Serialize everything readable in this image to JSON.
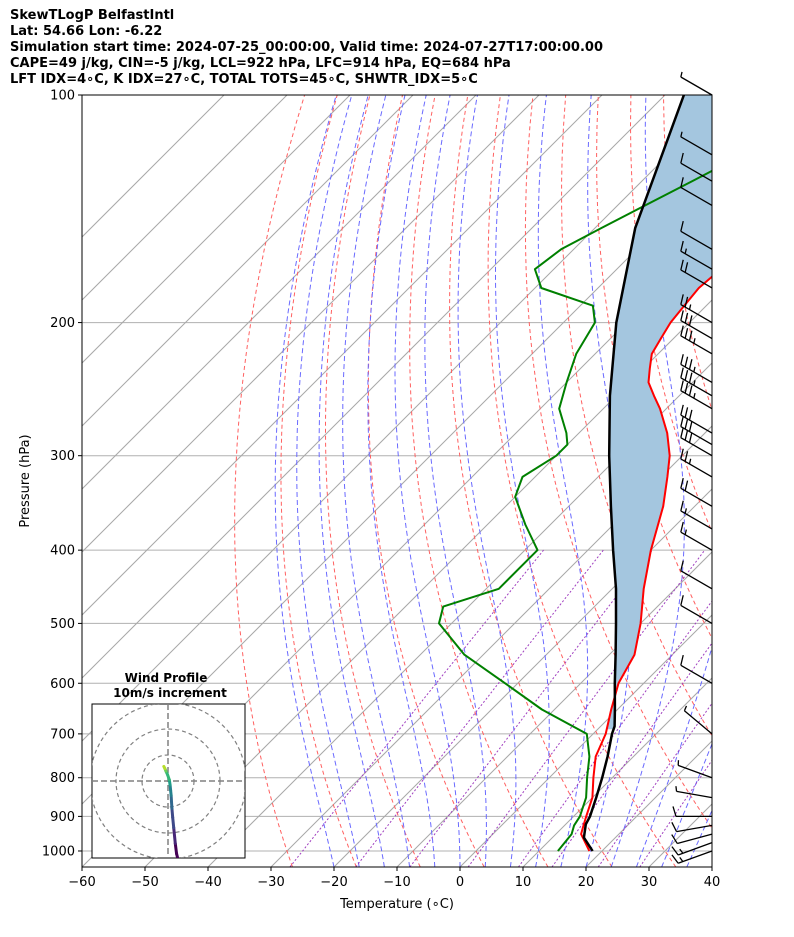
{
  "header": {
    "line1": "SkewTLogP BelfastIntl",
    "line2": "Lat: 54.66   Lon: -6.22",
    "line3": "Simulation start time: 2024-07-25_00:00:00, Valid time: 2024-07-27T17:00:00.00",
    "line4": "CAPE=49 j/kg, CIN=-5 j/kg, LCL=922 hPa, LFC=914 hPa, EQ=684 hPa",
    "line5": "LFT IDX=4∘C, K IDX=27∘C, TOTAL TOTS=45∘C, SHWTR_IDX=5∘C"
  },
  "chart_data": {
    "type": "skewt",
    "xlabel": "Temperature (∘C)",
    "ylabel": "Pressure (hPa)",
    "xlim": [
      -60,
      40
    ],
    "ylim": [
      1050,
      100
    ],
    "xticks": [
      -60,
      -50,
      -40,
      -30,
      -20,
      -10,
      0,
      10,
      20,
      30,
      40
    ],
    "xtick_labels": [
      "−60",
      "−50",
      "−40",
      "−30",
      "−20",
      "−10",
      "0",
      "10",
      "20",
      "30",
      "40"
    ],
    "yticks": [
      1000,
      900,
      800,
      700,
      600,
      500,
      400,
      300,
      200,
      100
    ],
    "ytick_labels": [
      "1000",
      "900",
      "800",
      "700",
      "600",
      "500",
      "400",
      "300",
      "200",
      "100"
    ],
    "skew": 1.0,
    "temperature": {
      "color": "#ff0000",
      "p": [
        1000,
        950,
        925,
        900,
        850,
        800,
        750,
        700,
        650,
        600,
        550,
        500,
        450,
        400,
        350,
        320,
        300,
        280,
        260,
        250,
        240,
        230,
        220,
        210,
        200,
        190,
        180,
        170,
        160,
        150,
        140,
        130,
        120,
        110,
        100
      ],
      "t": [
        18,
        14,
        13,
        12,
        10,
        7,
        4,
        2,
        -1,
        -4,
        -6,
        -10,
        -15,
        -20,
        -25,
        -29,
        -32,
        -36,
        -41,
        -44,
        -47,
        -49,
        -51,
        -52,
        -53,
        -53.5,
        -54,
        -53.5,
        -53,
        -53,
        -53.5,
        -54,
        -55,
        -55.5,
        -55
      ]
    },
    "dewpoint": {
      "color": "#008000",
      "p": [
        1000,
        950,
        925,
        900,
        850,
        800,
        750,
        700,
        650,
        600,
        550,
        500,
        475,
        450,
        400,
        370,
        340,
        320,
        300,
        290,
        280,
        260,
        240,
        220,
        200,
        190,
        180,
        170,
        160,
        150,
        130,
        110,
        100
      ],
      "t": [
        13,
        12.5,
        11.5,
        11,
        9,
        6,
        3,
        -1,
        -12,
        -22,
        -33,
        -42,
        -44,
        -38,
        -38,
        -44,
        -50,
        -52,
        -50,
        -50,
        -52,
        -57,
        -60,
        -63,
        -65,
        -68,
        -79,
        -83,
        -82,
        -79,
        -72,
        -64,
        -60
      ]
    },
    "parcel": {
      "color": "#000000",
      "p": [
        1000,
        960,
        922,
        900,
        850,
        800,
        750,
        700,
        684,
        650,
        600,
        550,
        500,
        450,
        400,
        350,
        300,
        250,
        200,
        150,
        100
      ],
      "t": [
        18.5,
        15,
        13.2,
        12.6,
        10.6,
        8.4,
        5.9,
        3.0,
        2.2,
        -0.4,
        -4.6,
        -9.0,
        -13.9,
        -19.4,
        -26.0,
        -33.3,
        -41.6,
        -51.0,
        -61.6,
        -73.6,
        -87.0
      ]
    },
    "surface_parcel_start": {
      "p": 1000,
      "t": 18.5
    },
    "cape_fill_color": "#a4c6df",
    "wind": {
      "p": [
        1000,
        975,
        950,
        925,
        900,
        850,
        800,
        700,
        600,
        500,
        450,
        400,
        375,
        350,
        320,
        300,
        290,
        280,
        260,
        250,
        240,
        220,
        210,
        200,
        180,
        170,
        160,
        140,
        130,
        120,
        100
      ],
      "speed_kt": [
        15,
        15,
        14,
        14,
        10,
        6,
        5,
        5,
        10,
        10,
        10,
        15,
        15,
        20,
        25,
        30,
        30,
        30,
        35,
        35,
        35,
        35,
        30,
        25,
        20,
        15,
        10,
        10,
        10,
        5,
        5
      ],
      "dir_deg": [
        250,
        250,
        255,
        260,
        270,
        280,
        290,
        310,
        300,
        300,
        300,
        300,
        300,
        300,
        300,
        300,
        300,
        300,
        300,
        300,
        300,
        300,
        300,
        300,
        300,
        300,
        300,
        300,
        300,
        300,
        300
      ]
    },
    "hodograph": {
      "title": "Wind Profile",
      "subtitle": "10m/s increment",
      "rings": [
        10,
        20,
        30
      ],
      "u": [
        -1.6,
        -1.2,
        -0.8,
        -0.2,
        0.5,
        0.8,
        1.0,
        1.2,
        1.5,
        1.8,
        2.2,
        2.8,
        3.3,
        3.8
      ],
      "v": [
        5.6,
        4.8,
        3.8,
        2.5,
        0.5,
        -1.5,
        -3.5,
        -5.5,
        -10.5,
        -14,
        -18,
        -24,
        -28,
        -30
      ],
      "colormap": "viridis"
    }
  }
}
